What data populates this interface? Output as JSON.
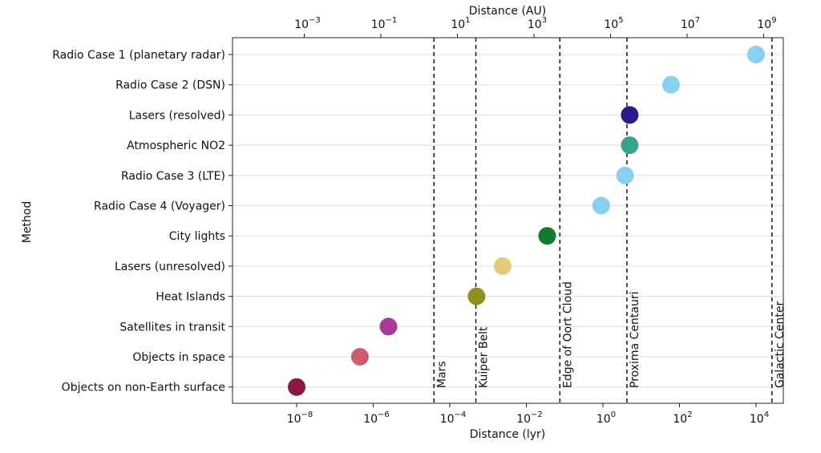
{
  "chart_data": {
    "type": "scatter",
    "xlabel": "Distance (lyr)",
    "x2label": "Distance (AU)",
    "ylabel": "Method",
    "xscale": "log",
    "xlim": [
      1e-10,
      100000.0
    ],
    "grid": "horizontal",
    "xticks": [
      {
        "base": "10",
        "exp": "−8",
        "value": 1e-08
      },
      {
        "base": "10",
        "exp": "−6",
        "value": 1e-06
      },
      {
        "base": "10",
        "exp": "−4",
        "value": 0.0001
      },
      {
        "base": "10",
        "exp": "−2",
        "value": 0.01
      },
      {
        "base": "10",
        "exp": "0",
        "value": 1
      },
      {
        "base": "10",
        "exp": "2",
        "value": 100
      },
      {
        "base": "10",
        "exp": "4",
        "value": 10000
      }
    ],
    "x2ticks": [
      {
        "base": "10",
        "exp": "−3",
        "value": 0.001
      },
      {
        "base": "10",
        "exp": "−1",
        "value": 0.1
      },
      {
        "base": "10",
        "exp": "1",
        "value": 10
      },
      {
        "base": "10",
        "exp": "3",
        "value": 1000
      },
      {
        "base": "10",
        "exp": "5",
        "value": 100000
      },
      {
        "base": "10",
        "exp": "7",
        "value": 10000000
      },
      {
        "base": "10",
        "exp": "9",
        "value": 1000000000
      }
    ],
    "points": [
      {
        "label": "Radio Case 1 (planetary radar)",
        "x": 10000,
        "color": "#89cff0"
      },
      {
        "label": "Radio Case 2 (DSN)",
        "x": 60,
        "color": "#89cff0"
      },
      {
        "label": "Lasers (resolved)",
        "x": 5,
        "color": "#2a1a8a"
      },
      {
        "label": "Atmospheric NO2",
        "x": 5,
        "color": "#3aa38e"
      },
      {
        "label": "Radio Case 3 (LTE)",
        "x": 3.8,
        "color": "#89cff0"
      },
      {
        "label": "Radio Case 4 (Voyager)",
        "x": 0.9,
        "color": "#89cff0"
      },
      {
        "label": "City lights",
        "x": 0.035,
        "color": "#137a2e"
      },
      {
        "label": "Lasers (unresolved)",
        "x": 0.0024,
        "color": "#e0cc7a"
      },
      {
        "label": "Heat Islands",
        "x": 0.0005,
        "color": "#8f8f22"
      },
      {
        "label": "Satellites in transit",
        "x": 2.5e-06,
        "color": "#a83a9a"
      },
      {
        "label": "Objects in space",
        "x": 4.5e-07,
        "color": "#cc5e6e"
      },
      {
        "label": "Objects on non-Earth surface",
        "x": 1e-08,
        "color": "#8a1845"
      }
    ],
    "reference_lines": [
      {
        "label": "Mars",
        "x": 3.86e-05
      },
      {
        "label": "Kuiper Belt",
        "x": 0.00048
      },
      {
        "label": "Edge of Oort Cloud",
        "x": 0.075
      },
      {
        "label": "Proxima Centauri",
        "x": 4.24
      },
      {
        "label": "Galactic Center",
        "x": 26000
      }
    ]
  }
}
